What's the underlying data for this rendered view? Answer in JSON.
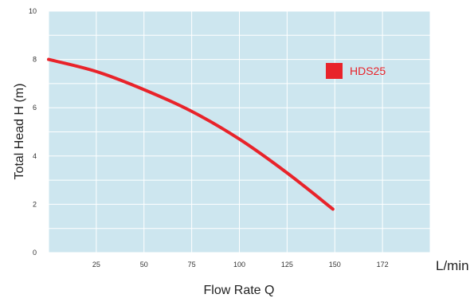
{
  "chart_data": {
    "type": "line",
    "xlabel": "Flow Rate Q",
    "ylabel": "Total Head H (m)",
    "x_unit": "L/min",
    "xlim": [
      0,
      200
    ],
    "ylim": [
      0,
      10
    ],
    "x_ticks": [
      25,
      50,
      75,
      100,
      125,
      150,
      172
    ],
    "y_ticks": [
      0,
      2,
      4,
      6,
      8,
      10
    ],
    "grid": true,
    "legend_position": "top-right",
    "plot_background": "#cde6ef",
    "grid_color": "#ffffff",
    "series": [
      {
        "name": "HDS25",
        "color": "#e8232a",
        "x": [
          0,
          25,
          50,
          75,
          100,
          125,
          149
        ],
        "y": [
          8.0,
          7.5,
          6.75,
          5.85,
          4.7,
          3.3,
          1.8
        ]
      }
    ]
  }
}
